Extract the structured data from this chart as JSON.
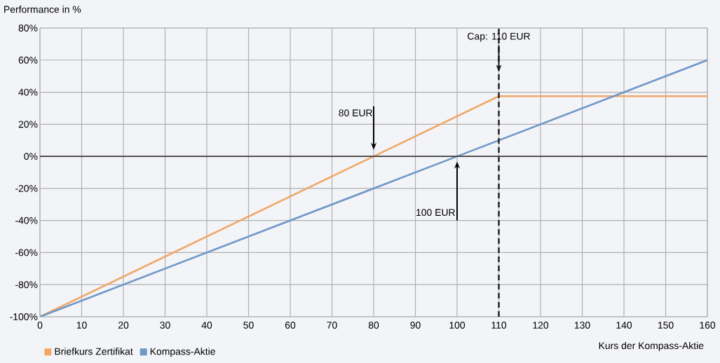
{
  "chart_data": {
    "type": "line",
    "xlabel": "Kurs der Kompass-Aktie",
    "ylabel": "Performance in %",
    "series": [
      {
        "name": "Briefkurs Zertifikat",
        "color": "#f0a868",
        "x": [
          0,
          80,
          110,
          160
        ],
        "values": [
          -100,
          0,
          37.5,
          37.5
        ]
      },
      {
        "name": "Kompass-Aktie",
        "color": "#6f98c8",
        "x": [
          0,
          100,
          160
        ],
        "values": [
          -100,
          0,
          60
        ]
      }
    ],
    "xlim": [
      0,
      160
    ],
    "xticks": [
      0,
      10,
      20,
      30,
      40,
      50,
      60,
      70,
      80,
      90,
      100,
      110,
      120,
      130,
      140,
      150,
      160
    ],
    "ylim": [
      -100,
      80
    ],
    "yticks": [
      {
        "value": -100,
        "label": "-100%"
      },
      {
        "value": -80,
        "label": "-80%"
      },
      {
        "value": -60,
        "label": "-60%"
      },
      {
        "value": -40,
        "label": "-40%"
      },
      {
        "value": -20,
        "label": "-20%"
      },
      {
        "value": 0,
        "label": "0%"
      },
      {
        "value": 20,
        "label": "20%"
      },
      {
        "value": 40,
        "label": "40%"
      },
      {
        "value": 60,
        "label": "60%"
      },
      {
        "value": 80,
        "label": "80%"
      }
    ],
    "ref_lines": [
      {
        "axis": "x",
        "value": 110,
        "label": "Cap: 110 EUR",
        "color": "#1a1a1a",
        "line_style": "dashed"
      },
      {
        "axis": "y",
        "value": 0,
        "color": "#404040"
      }
    ],
    "annotations": [
      "80 EUR",
      "100 EUR"
    ],
    "grid": true,
    "legend": "bottom left",
    "marker": "none",
    "line_style": "solid"
  }
}
